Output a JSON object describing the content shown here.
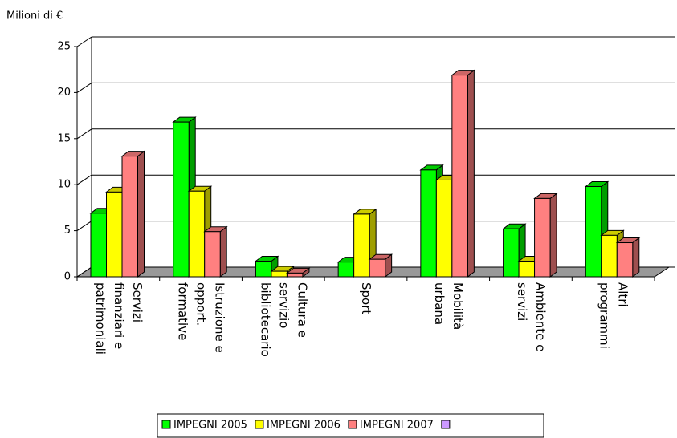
{
  "chart_data": {
    "type": "bar3d",
    "y_label": "Milioni di €",
    "categories": [
      [
        "Servizi",
        "finanziari e",
        "patrimoniali"
      ],
      [
        "Istruzione e",
        "opport.",
        "formative"
      ],
      [
        "Cultura e",
        "servizio",
        "bibliotecario"
      ],
      [
        "Sport"
      ],
      [
        "Mobilità",
        "urbana"
      ],
      [
        "Ambiente e",
        "servizi"
      ],
      [
        "Altri",
        "programmi"
      ]
    ],
    "series": [
      {
        "name": "IMPEGNI 2005",
        "color": "#00ff00",
        "values": [
          6.9,
          16.8,
          1.7,
          1.6,
          11.6,
          5.2,
          9.8
        ]
      },
      {
        "name": "IMPEGNI 2006",
        "color": "#ffff00",
        "values": [
          9.2,
          9.3,
          0.6,
          6.8,
          10.5,
          1.7,
          4.5
        ]
      },
      {
        "name": "IMPEGNI 2007",
        "color": "#ff8080",
        "values": [
          13.1,
          4.9,
          0.4,
          1.9,
          21.9,
          8.5,
          3.7
        ]
      }
    ],
    "ylim": [
      0,
      25
    ],
    "yticks": [
      0,
      5,
      10,
      15,
      20,
      25
    ],
    "grid": true,
    "legend": "bottom"
  }
}
